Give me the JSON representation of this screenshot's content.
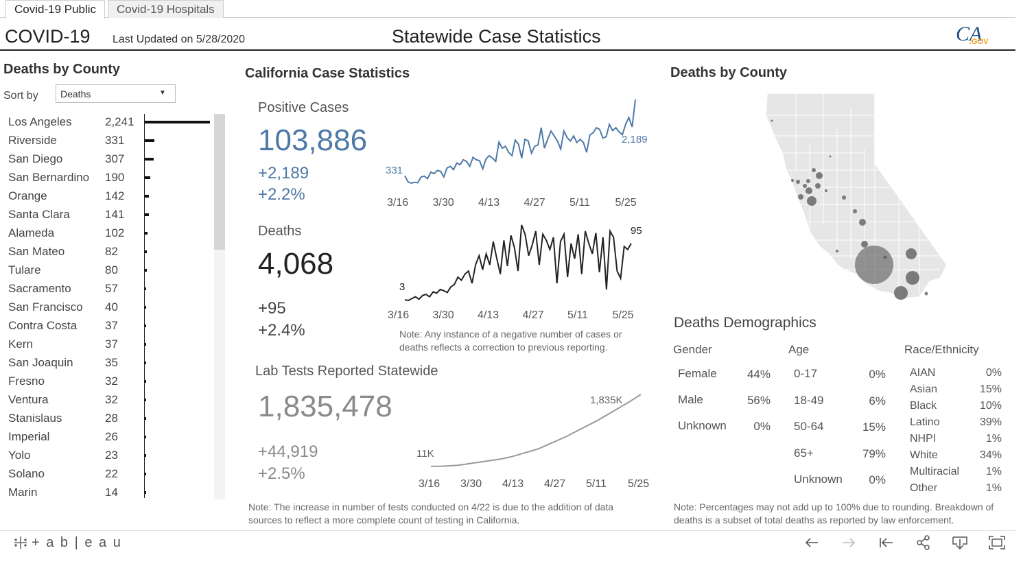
{
  "tabs": [
    {
      "label": "Covid-19 Public",
      "active": true
    },
    {
      "label": "Covid-19 Hospitals",
      "active": false
    }
  ],
  "header": {
    "title": "COVID-19",
    "last_updated": "Last Updated on 5/28/2020",
    "page_title": "Statewide Case Statistics",
    "logo_text": "CA",
    "logo_suffix": ".GOV"
  },
  "left_panel": {
    "title": "Deaths by County",
    "sort_label": "Sort by",
    "sort_value": "Deaths",
    "counties": [
      {
        "name": "Los Angeles",
        "value": "2,241",
        "deaths": 2241
      },
      {
        "name": "Riverside",
        "value": "331",
        "deaths": 331
      },
      {
        "name": "San Diego",
        "value": "307",
        "deaths": 307
      },
      {
        "name": "San Bernardino",
        "value": "190",
        "deaths": 190
      },
      {
        "name": "Orange",
        "value": "142",
        "deaths": 142
      },
      {
        "name": "Santa Clara",
        "value": "141",
        "deaths": 141
      },
      {
        "name": "Alameda",
        "value": "102",
        "deaths": 102
      },
      {
        "name": "San Mateo",
        "value": "82",
        "deaths": 82
      },
      {
        "name": "Tulare",
        "value": "80",
        "deaths": 80
      },
      {
        "name": "Sacramento",
        "value": "57",
        "deaths": 57
      },
      {
        "name": "San Francisco",
        "value": "40",
        "deaths": 40
      },
      {
        "name": "Contra Costa",
        "value": "37",
        "deaths": 37
      },
      {
        "name": "Kern",
        "value": "37",
        "deaths": 37
      },
      {
        "name": "San Joaquin",
        "value": "35",
        "deaths": 35
      },
      {
        "name": "Fresno",
        "value": "32",
        "deaths": 32
      },
      {
        "name": "Ventura",
        "value": "32",
        "deaths": 32
      },
      {
        "name": "Stanislaus",
        "value": "28",
        "deaths": 28
      },
      {
        "name": "Imperial",
        "value": "26",
        "deaths": 26
      },
      {
        "name": "Yolo",
        "value": "23",
        "deaths": 23
      },
      {
        "name": "Solano",
        "value": "22",
        "deaths": 22
      },
      {
        "name": "Marin",
        "value": "14",
        "deaths": 14
      }
    ]
  },
  "stats": {
    "title": "California Case Statistics",
    "positive": {
      "label": "Positive Cases",
      "total": "103,886",
      "delta": "+2,189",
      "pct": "+2.2%",
      "start_label": "331",
      "end_label": "2,189",
      "color": "#4e79a7"
    },
    "deaths": {
      "label": "Deaths",
      "total": "4,068",
      "delta": "+95",
      "pct": "+2.4%",
      "start_label": "3",
      "end_label": "95",
      "color": "#222222"
    },
    "lab": {
      "label": "Lab Tests Reported Statewide",
      "total": "1,835,478",
      "delta": "+44,919",
      "pct": "+2.5%",
      "start_label": "11K",
      "end_label": "1,835K",
      "color": "#999999"
    },
    "x_ticks": [
      "3/16",
      "3/30",
      "4/13",
      "4/27",
      "5/11",
      "5/25"
    ],
    "deaths_note": "Note: Any instance of a negative number of cases or deaths reflects a correction to previous reporting.",
    "lab_note": "Note: The increase in number of tests conducted on 4/22 is due to the addition of data sources to reflect a more complete count of testing in California."
  },
  "chart_data": [
    {
      "type": "line",
      "title": "Positive Cases",
      "x_ticks": [
        "3/16",
        "3/30",
        "4/13",
        "4/27",
        "5/11",
        "5/25"
      ],
      "series": [
        {
          "values": [
            331,
            180,
            150,
            170,
            160,
            300,
            320,
            260,
            420,
            380,
            460,
            440,
            300,
            520,
            560,
            480,
            640,
            600,
            720,
            680,
            560,
            780,
            720,
            700,
            500,
            740,
            820,
            760,
            680,
            1150,
            1000,
            1050,
            900,
            820,
            1200,
            1100,
            760,
            1220,
            1180,
            880,
            1050,
            1080,
            1500,
            1000,
            1220,
            1420,
            1300,
            1180,
            980,
            1420,
            1260,
            1180,
            1300,
            1140,
            1220,
            1140,
            900,
            1320,
            1380,
            1500,
            1460,
            1250,
            1280,
            1580,
            1430,
            1500,
            1400,
            1330,
            1580,
            1750,
            1520,
            2189
          ]
        }
      ]
    },
    {
      "type": "line",
      "title": "Deaths",
      "x_ticks": [
        "3/16",
        "3/30",
        "4/13",
        "4/27",
        "5/11",
        "5/25"
      ],
      "series": [
        {
          "values": [
            3,
            2,
            5,
            8,
            4,
            10,
            12,
            8,
            16,
            14,
            20,
            18,
            15,
            24,
            28,
            40,
            35,
            45,
            50,
            30,
            60,
            75,
            52,
            78,
            60,
            98,
            70,
            45,
            100,
            58,
            108,
            88,
            50,
            125,
            110,
            75,
            92,
            115,
            60,
            110,
            100,
            85,
            105,
            30,
            98,
            110,
            40,
            95,
            70,
            110,
            45,
            115,
            95,
            78,
            112,
            48,
            105,
            20,
            115,
            105,
            50,
            38,
            90,
            85,
            95
          ]
        }
      ]
    },
    {
      "type": "area",
      "title": "Lab Tests Reported Statewide",
      "x_ticks": [
        "3/16",
        "3/30",
        "4/13",
        "4/27",
        "5/11",
        "5/25"
      ],
      "series": [
        {
          "values": [
            11,
            14,
            18,
            25,
            32,
            40,
            60,
            80,
            100,
            120,
            140,
            160,
            180,
            200,
            230,
            260,
            300,
            340,
            380,
            420,
            460,
            520,
            580,
            640,
            700,
            760,
            830,
            900,
            970,
            1040,
            1110,
            1180,
            1260,
            1340,
            1420,
            1500,
            1580,
            1660,
            1750,
            1835
          ]
        }
      ]
    }
  ],
  "map": {
    "title": "Deaths by County"
  },
  "demographics": {
    "title": "Deaths Demographics",
    "gender": {
      "header": "Gender",
      "rows": [
        {
          "label": "Female",
          "value": "44%"
        },
        {
          "label": "Male",
          "value": "56%"
        },
        {
          "label": "Unknown",
          "value": "0%"
        }
      ]
    },
    "age": {
      "header": "Age",
      "rows": [
        {
          "label": "0-17",
          "value": "0%"
        },
        {
          "label": "18-49",
          "value": "6%"
        },
        {
          "label": "50-64",
          "value": "15%"
        },
        {
          "label": "65+",
          "value": "79%"
        },
        {
          "label": "Unknown",
          "value": "0%"
        }
      ]
    },
    "race": {
      "header": "Race/Ethnicity",
      "rows": [
        {
          "label": "AIAN",
          "value": "0%"
        },
        {
          "label": "Asian",
          "value": "15%"
        },
        {
          "label": "Black",
          "value": "10%"
        },
        {
          "label": "Latino",
          "value": "39%"
        },
        {
          "label": "NHPI",
          "value": "1%"
        },
        {
          "label": "White",
          "value": "34%"
        },
        {
          "label": "Multiracial",
          "value": "1%"
        },
        {
          "label": "Other",
          "value": "1%"
        }
      ]
    },
    "note": "Note: Percentages may not add up to 100% due to rounding. Breakdown of deaths is a subset of total deaths as reported by law enforcement."
  },
  "footer": {
    "brand": "+ a b | e a u"
  }
}
